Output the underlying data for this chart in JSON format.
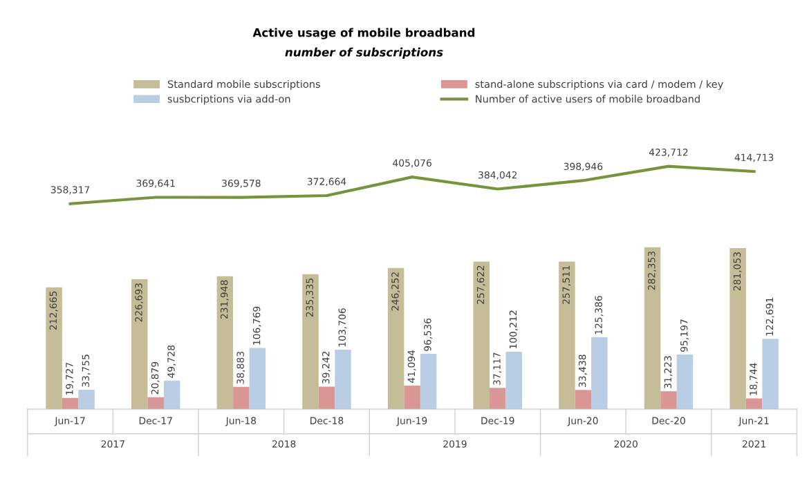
{
  "chart_data": {
    "type": "bar",
    "title": "Active usage of mobile broadband",
    "subtitle": "number of subscriptions",
    "categories": [
      "Jun-17",
      "Dec-17",
      "Jun-18",
      "Dec-18",
      "Jun-19",
      "Dec-19",
      "Jun-20",
      "Dec-20",
      "Jun-21"
    ],
    "series": [
      {
        "name": "Standard mobile subscriptions",
        "color": "#c4bd97",
        "values": [
          212665,
          226693,
          231948,
          235335,
          246252,
          257622,
          257511,
          282353,
          281053
        ],
        "value_labels": [
          "212,665",
          "226,693",
          "231,948",
          "235,335",
          "246,252",
          "257,622",
          "257,511",
          "282,353",
          "281,053"
        ]
      },
      {
        "name": "stand-alone subscriptions via card / modem / key",
        "color": "#d99694",
        "values": [
          19727,
          20879,
          38883,
          39242,
          41094,
          37117,
          33438,
          31223,
          18744
        ],
        "value_labels": [
          "19,727",
          "20,879",
          "38,883",
          "39,242",
          "41,094",
          "37,117",
          "33,438",
          "31,223",
          "18,744"
        ]
      },
      {
        "name": "susbcriptions via add-on",
        "color": "#b9cde5",
        "values": [
          33755,
          49728,
          106769,
          103706,
          96536,
          100212,
          125386,
          95197,
          122691
        ],
        "value_labels": [
          "33,755",
          "49,728",
          "106,769",
          "103,706",
          "96,536",
          "100,212",
          "125,386",
          "95,197",
          "122,691"
        ]
      },
      {
        "name": "Number of active users of mobile broadband",
        "color": "#77933c",
        "type": "line",
        "values": [
          358317,
          369641,
          369578,
          372664,
          405076,
          384042,
          398946,
          423712,
          414713
        ],
        "value_labels": [
          "358,317",
          "369,641",
          "369,578",
          "372,664",
          "405,076",
          "384,042",
          "398,946",
          "423,712",
          "414,713"
        ]
      }
    ],
    "annotations": [
      "2017",
      "2018",
      "2019",
      "2020",
      "2021"
    ],
    "tick_labels": "x",
    "legend": "top",
    "grid": false
  }
}
